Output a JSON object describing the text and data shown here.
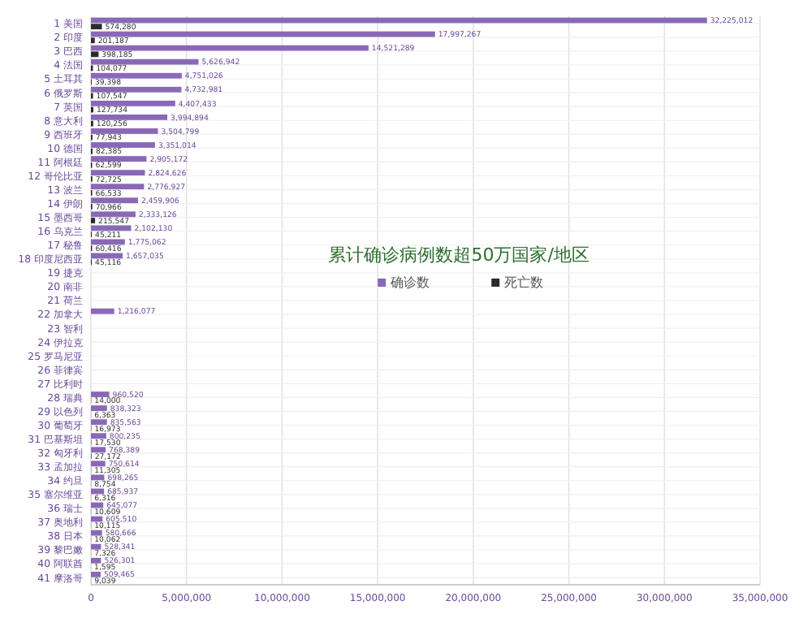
{
  "chart_data": {
    "type": "bar",
    "orientation": "horizontal",
    "title": "累计确诊病例数超50万国家/地区",
    "categories": [
      "1 美国",
      "2 印度",
      "3 巴西",
      "4 法国",
      "5 土耳其",
      "6 俄罗斯",
      "7 英国",
      "8 意大利",
      "9 西班牙",
      "10 德国",
      "11 阿根廷",
      "12 哥伦比亚",
      "13 波兰",
      "14 伊朗",
      "15 墨西哥",
      "16 乌克兰",
      "17 秘鲁",
      "18 印度尼西亚",
      "19 捷克",
      "20 南非",
      "21 荷兰",
      "22 加拿大",
      "23 智利",
      "24 伊拉克",
      "25 罗马尼亚",
      "26 菲律宾",
      "27 比利时",
      "28 瑞典",
      "29 以色列",
      "30 葡萄牙",
      "31 巴基斯坦",
      "32 匈牙利",
      "33 孟加拉",
      "34 约旦",
      "35 塞尔维亚",
      "36 瑞士",
      "37 奥地利",
      "38 日本",
      "39 黎巴嫩",
      "40 阿联酋",
      "41 摩洛哥"
    ],
    "series": [
      {
        "name": "确诊数",
        "color": "#8a68b8",
        "values": [
          32225012,
          17997267,
          14521289,
          5626942,
          4751026,
          4732981,
          4407433,
          3994894,
          3504799,
          3351014,
          2905172,
          2824626,
          2776927,
          2459906,
          2333126,
          2102130,
          1775062,
          1657035,
          null,
          null,
          null,
          1216077,
          null,
          null,
          null,
          null,
          null,
          960520,
          838323,
          835563,
          800235,
          768389,
          750614,
          698265,
          685937,
          645077,
          605510,
          580666,
          528341,
          526301,
          509465
        ],
        "value_labels": [
          "32,225,012",
          "17,997,267",
          "14,521,289",
          "5,626,942",
          "4,751,026",
          "4,732,981",
          "4,407,433",
          "3,994,894",
          "3,504,799",
          "3,351,014",
          "2,905,172",
          "2,824,626",
          "2,776,927",
          "2,459,906",
          "2,333,126",
          "2,102,130",
          "1,775,062",
          "1,657,035",
          null,
          null,
          null,
          "1,216,077",
          null,
          null,
          null,
          null,
          null,
          "960,520",
          "838,323",
          "835,563",
          "800,235",
          "768,389",
          "750,614",
          "698,265",
          "685,937",
          "645,077",
          "605,510",
          "580,666",
          "528,341",
          "526,301",
          "509,465"
        ]
      },
      {
        "name": "死亡数",
        "color": "#2b2b2b",
        "values": [
          574280,
          201187,
          398185,
          104077,
          39398,
          107547,
          127734,
          120256,
          77943,
          82385,
          62599,
          72725,
          66533,
          70966,
          215547,
          45211,
          60416,
          45116,
          null,
          null,
          null,
          null,
          null,
          null,
          null,
          null,
          null,
          14000,
          6363,
          16973,
          17530,
          27172,
          11305,
          8754,
          6316,
          10609,
          10115,
          10062,
          7326,
          1595,
          9039
        ],
        "value_labels": [
          "574,280",
          "201,187",
          "398,185",
          "104,077",
          "39,398",
          "107,547",
          "127,734",
          "120,256",
          "77,943",
          "82,385",
          "62,599",
          "72,725",
          "66,533",
          "70,966",
          "215,547",
          "45,211",
          "60,416",
          "45,116",
          null,
          null,
          null,
          null,
          null,
          null,
          null,
          null,
          null,
          "14,000",
          "6,363",
          "16,973",
          "17,530",
          "27,172",
          "11,305",
          "8,754",
          "6,316",
          "10,609",
          "10,115",
          "10,062",
          "7,326",
          "1,595",
          "9,039"
        ]
      }
    ],
    "xlim": [
      0,
      35000000
    ],
    "xticks": [
      0,
      {
        "value": 5000000,
        "label": "5,000,000"
      },
      {
        "value": 10000000,
        "label": "10,000,000"
      },
      {
        "value": 15000000,
        "label": "15,000,000"
      },
      {
        "value": 20000000,
        "label": "20,000,000"
      },
      {
        "value": 25000000,
        "label": "25,000,000"
      },
      {
        "value": 30000000,
        "label": "30,000,000"
      },
      {
        "value": 35000000,
        "label": "35,000,000"
      }
    ],
    "grid": true,
    "legend": "top"
  }
}
